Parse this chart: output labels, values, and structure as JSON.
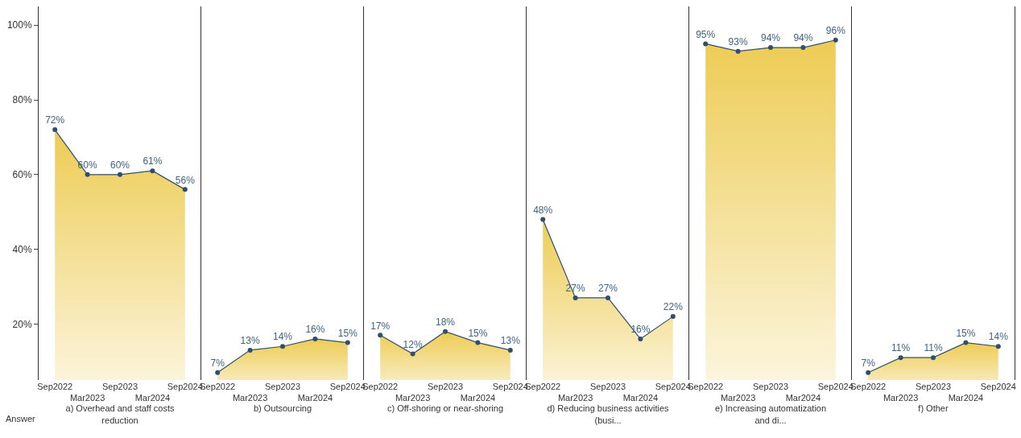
{
  "chart_data": [
    {
      "type": "area",
      "xlabel": "a) Overhead and staff costs reduction",
      "annotations": [
        "Answer"
      ],
      "categories": [
        "Sep2022",
        "Mar2023",
        "Sep2023",
        "Mar2024",
        "Sep2024"
      ],
      "series": [
        {
          "color": "#ecc94b",
          "values": [
            72,
            60,
            60,
            61,
            56
          ],
          "value_labels": [
            "72%",
            "60%",
            "60%",
            "61%",
            "56%"
          ]
        }
      ],
      "ylim": [
        5,
        105
      ],
      "yticks": [
        {
          "value": 20,
          "label": "20%"
        },
        {
          "value": 40,
          "label": "40%"
        },
        {
          "value": 60,
          "label": "60%"
        },
        {
          "value": 80,
          "label": "80%"
        },
        {
          "value": 100,
          "label": "100%"
        }
      ],
      "marker": "circle"
    },
    {
      "type": "area",
      "xlabel": "b) Outsourcing",
      "categories": [
        "Sep2022",
        "Mar2023",
        "Sep2023",
        "Mar2024",
        "Sep2024"
      ],
      "series": [
        {
          "color": "#ecc94b",
          "values": [
            7,
            13,
            14,
            16,
            15
          ],
          "value_labels": [
            "7%",
            "13%",
            "14%",
            "16%",
            "15%"
          ]
        }
      ],
      "ylim": [
        5,
        105
      ],
      "tick_labels": "x",
      "marker": "circle"
    },
    {
      "type": "area",
      "xlabel": "c) Off-shoring or near-shoring",
      "categories": [
        "Sep2022",
        "Mar2023",
        "Sep2023",
        "Mar2024",
        "Sep2024"
      ],
      "series": [
        {
          "color": "#ecc94b",
          "values": [
            17,
            12,
            18,
            15,
            13
          ],
          "value_labels": [
            "17%",
            "12%",
            "18%",
            "15%",
            "13%"
          ]
        }
      ],
      "ylim": [
        5,
        105
      ],
      "tick_labels": "x",
      "marker": "circle"
    },
    {
      "type": "area",
      "xlabel": "d) Reducing business activities (busi...",
      "categories": [
        "Sep2022",
        "Mar2023",
        "Sep2023",
        "Mar2024",
        "Sep2024"
      ],
      "series": [
        {
          "color": "#ecc94b",
          "values": [
            48,
            27,
            27,
            16,
            22
          ],
          "value_labels": [
            "48%",
            "27%",
            "27%",
            "16%",
            "22%"
          ]
        }
      ],
      "ylim": [
        5,
        105
      ],
      "tick_labels": "x",
      "marker": "circle"
    },
    {
      "type": "area",
      "xlabel": "e) Increasing automatization and di...",
      "categories": [
        "Sep2022",
        "Mar2023",
        "Sep2023",
        "Mar2024",
        "Sep2024"
      ],
      "series": [
        {
          "color": "#ecc94b",
          "values": [
            95,
            93,
            94,
            94,
            96
          ],
          "value_labels": [
            "95%",
            "93%",
            "94%",
            "94%",
            "96%"
          ]
        }
      ],
      "ylim": [
        5,
        105
      ],
      "tick_labels": "x",
      "marker": "circle"
    },
    {
      "type": "area",
      "xlabel": "f) Other",
      "categories": [
        "Sep2022",
        "Mar2023",
        "Sep2023",
        "Mar2024",
        "Sep2024"
      ],
      "series": [
        {
          "color": "#ecc94b",
          "values": [
            7,
            11,
            11,
            15,
            14
          ],
          "value_labels": [
            "7%",
            "11%",
            "11%",
            "15%",
            "14%"
          ]
        }
      ],
      "ylim": [
        5,
        105
      ],
      "tick_labels": "x",
      "marker": "circle"
    }
  ]
}
